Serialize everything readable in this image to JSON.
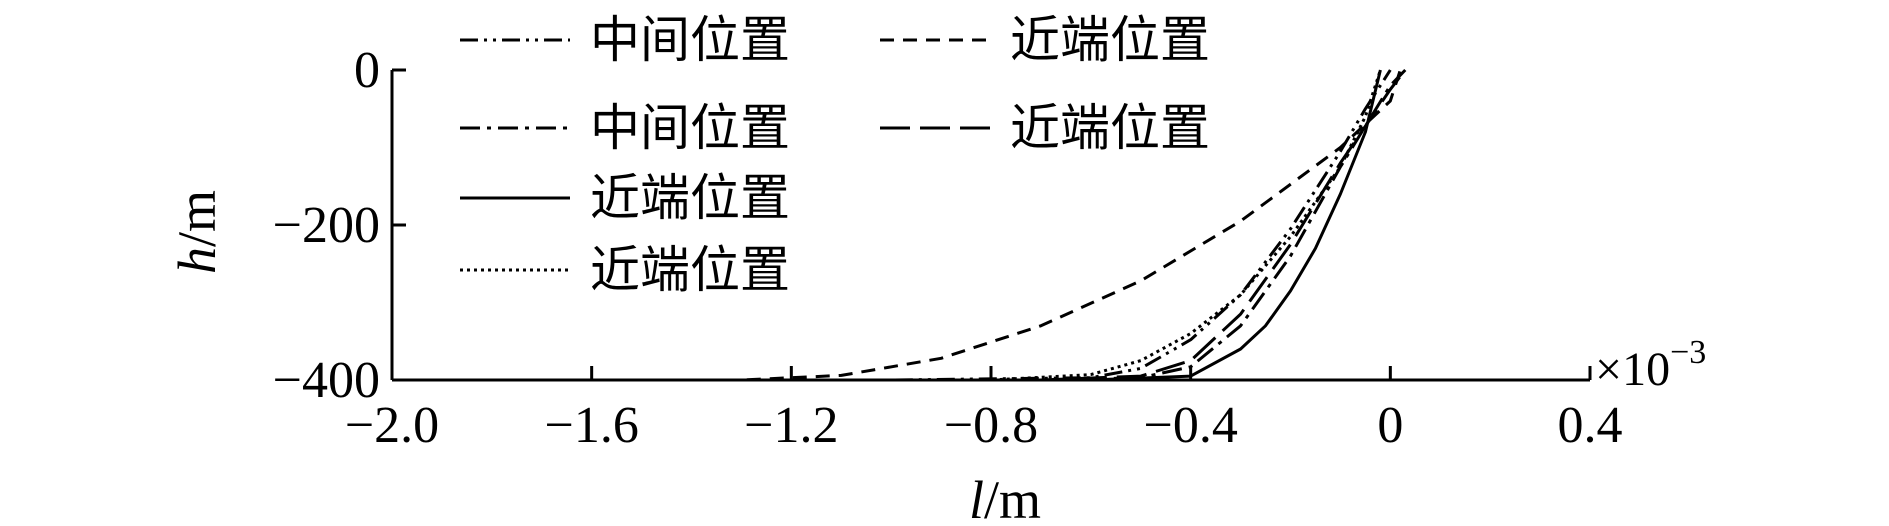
{
  "chart_data": {
    "type": "line",
    "xlabel_italic": "l",
    "xlabel_unit": "/m",
    "ylabel_italic": "h",
    "ylabel_unit": "/m",
    "x_exponent_label": "×10",
    "x_exponent_power": "−3",
    "xlim": [
      -2.0,
      0.4
    ],
    "ylim": [
      -400,
      0
    ],
    "x_ticks": [
      {
        "value": -2.0,
        "label": "−2.0"
      },
      {
        "value": -1.6,
        "label": "−1.6"
      },
      {
        "value": -1.2,
        "label": "−1.2"
      },
      {
        "value": -0.8,
        "label": "−0.8"
      },
      {
        "value": -0.4,
        "label": "−0.4"
      },
      {
        "value": 0,
        "label": "0"
      },
      {
        "value": 0.4,
        "label": "0.4"
      }
    ],
    "y_ticks": [
      {
        "value": 0,
        "label": "0"
      },
      {
        "value": -200,
        "label": "−200"
      },
      {
        "value": -400,
        "label": "−400"
      }
    ],
    "grid": false,
    "legend_position": "top-left",
    "series": [
      {
        "name": "中间位置",
        "style": "dash-dot-dot",
        "x": [
          -1.75,
          -1.0,
          -0.6,
          -0.5,
          -0.4,
          -0.3,
          -0.2,
          -0.1,
          -0.05,
          0.0
        ],
        "y": [
          -400,
          -400,
          -397,
          -385,
          -348,
          -290,
          -205,
          -105,
          -50,
          0
        ]
      },
      {
        "name": "近端位置",
        "style": "dashed-short",
        "x": [
          -1.75,
          -1.3,
          -1.1,
          -0.9,
          -0.7,
          -0.5,
          -0.3,
          -0.1,
          0.0,
          0.02
        ],
        "y": [
          -400,
          -400,
          -394,
          -372,
          -330,
          -272,
          -195,
          -100,
          -40,
          0
        ]
      },
      {
        "name": "中间位置",
        "style": "dash-dot",
        "x": [
          -1.75,
          -0.7,
          -0.5,
          -0.4,
          -0.3,
          -0.2,
          -0.1,
          0.0,
          0.03
        ],
        "y": [
          -400,
          -400,
          -397,
          -383,
          -330,
          -240,
          -125,
          -20,
          0
        ]
      },
      {
        "name": "近端位置",
        "style": "dashed-long",
        "x": [
          -1.75,
          -0.7,
          -0.5,
          -0.4,
          -0.3,
          -0.2,
          -0.1,
          0.0,
          0.03
        ],
        "y": [
          -400,
          -400,
          -395,
          -375,
          -315,
          -225,
          -120,
          -25,
          0
        ]
      },
      {
        "name": "近端位置",
        "style": "solid",
        "x": [
          -1.75,
          -0.6,
          -0.4,
          -0.3,
          -0.25,
          -0.2,
          -0.15,
          -0.1,
          -0.05,
          -0.02
        ],
        "y": [
          -400,
          -400,
          -395,
          -360,
          -330,
          -285,
          -230,
          -160,
          -80,
          0
        ]
      },
      {
        "name": "近端位置",
        "style": "dotted",
        "x": [
          -1.75,
          -0.8,
          -0.6,
          -0.5,
          -0.4,
          -0.3,
          -0.2,
          -0.1,
          -0.05,
          -0.02
        ],
        "y": [
          -400,
          -400,
          -393,
          -375,
          -340,
          -290,
          -215,
          -125,
          -60,
          0
        ]
      }
    ]
  }
}
